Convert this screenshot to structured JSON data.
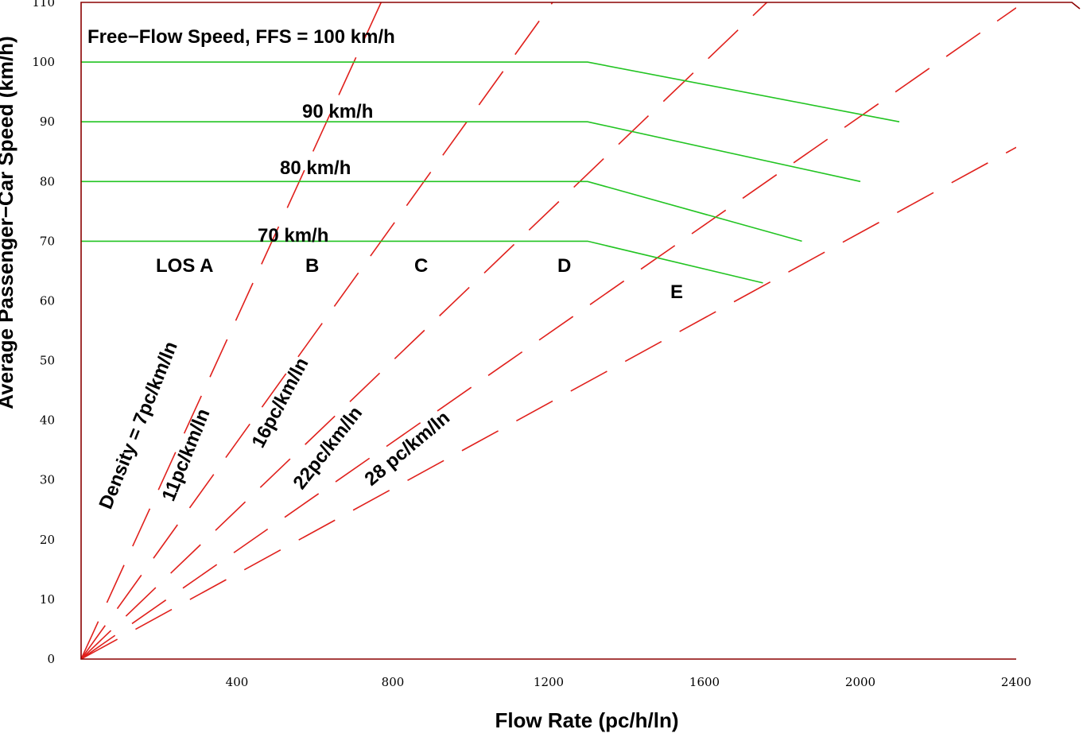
{
  "chart_data": {
    "type": "line",
    "xlabel": "Flow Rate (pc/h/ln)",
    "ylabel": "Average Passenger−Car Speed (km/h)",
    "xlim": [
      0,
      2400
    ],
    "ylim": [
      0,
      110
    ],
    "x_ticks": [
      400,
      800,
      1200,
      1600,
      2000,
      2400
    ],
    "y_ticks": [
      0,
      10,
      20,
      30,
      40,
      50,
      60,
      70,
      80,
      90,
      100,
      110
    ],
    "colors": {
      "speed_flow": "#22c422",
      "density": "#e0201c",
      "axis": "#8b0000"
    },
    "speed_flow_curves": [
      {
        "label": "Free−Flow Speed, FFS = 100 km/h",
        "points": [
          [
            0,
            100
          ],
          [
            1300,
            100
          ],
          [
            2100,
            90
          ]
        ]
      },
      {
        "label": "90 km/h",
        "points": [
          [
            0,
            90
          ],
          [
            1300,
            90
          ],
          [
            2000,
            80
          ]
        ]
      },
      {
        "label": "80 km/h",
        "points": [
          [
            0,
            80
          ],
          [
            1300,
            80
          ],
          [
            1850,
            70
          ]
        ]
      },
      {
        "label": "70 km/h",
        "points": [
          [
            0,
            70
          ],
          [
            1300,
            70
          ],
          [
            1750,
            63
          ]
        ]
      }
    ],
    "density_lines": [
      {
        "label": "Density = 7pc/km/ln",
        "density": 7
      },
      {
        "label": "11pc/km/ln",
        "density": 11
      },
      {
        "label": "16pc/km/ln",
        "density": 16
      },
      {
        "label": "22pc/km/ln",
        "density": 22
      },
      {
        "label": "28 pc/km/ln",
        "density": 28
      }
    ],
    "los_labels": [
      "LOS A",
      "B",
      "C",
      "D",
      "E"
    ]
  }
}
